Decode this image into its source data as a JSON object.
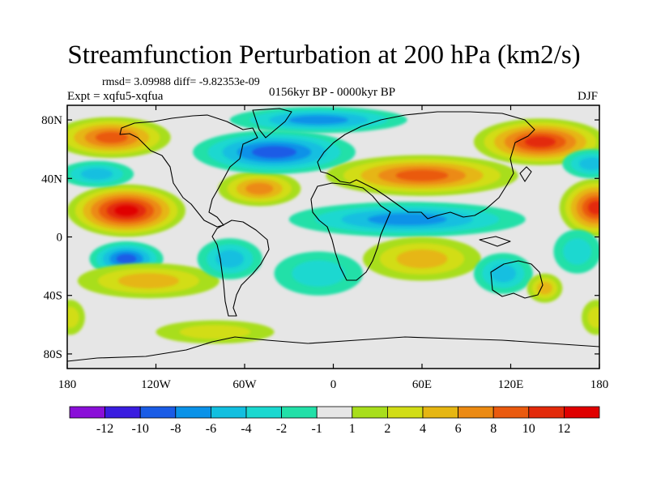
{
  "title": "Streamfunction Perturbation at 200 hPa (km2/s)",
  "stats_text": "rmsd= 3.09988  diff= -9.82353e-09",
  "experiment": "Expt = xqfu5-xqfua",
  "period": "0156kyr BP - 0000kyr BP",
  "season": "DJF",
  "map": {
    "projection": "cylindrical equidistant",
    "lon_range": [
      -180,
      180
    ],
    "lat_range": [
      -90,
      90
    ],
    "lat_ticks": [
      {
        "value": 80,
        "label": "80N"
      },
      {
        "value": 40,
        "label": "40N"
      },
      {
        "value": 0,
        "label": "0"
      },
      {
        "value": -40,
        "label": "40S"
      },
      {
        "value": -80,
        "label": "80S"
      }
    ],
    "lon_ticks": [
      {
        "value": -180,
        "label": "180"
      },
      {
        "value": -120,
        "label": "120W"
      },
      {
        "value": -60,
        "label": "60W"
      },
      {
        "value": 0,
        "label": "0"
      },
      {
        "value": 60,
        "label": "60E"
      },
      {
        "value": 120,
        "label": "120E"
      },
      {
        "value": 180,
        "label": "180"
      }
    ],
    "features": [
      {
        "name": "north-pacific-high",
        "lon": -140,
        "lat": 18,
        "rx": 40,
        "ry": 18,
        "value": 12
      },
      {
        "name": "arctic-high-west",
        "lon": -150,
        "lat": 68,
        "rx": 40,
        "ry": 14,
        "value": 8
      },
      {
        "name": "pacific-low-40n",
        "lon": -160,
        "lat": 43,
        "rx": 25,
        "ry": 9,
        "value": -4
      },
      {
        "name": "atlantic-high",
        "lon": -50,
        "lat": 33,
        "rx": 28,
        "ry": 12,
        "value": 6
      },
      {
        "name": "north-america-europe-low",
        "lon": -40,
        "lat": 58,
        "rx": 55,
        "ry": 15,
        "value": -8
      },
      {
        "name": "arctic-low",
        "lon": -10,
        "lat": 80,
        "rx": 60,
        "ry": 9,
        "value": -6
      },
      {
        "name": "eurasia-subtropical-high",
        "lon": 60,
        "lat": 42,
        "rx": 65,
        "ry": 14,
        "value": 8
      },
      {
        "name": "tropical-asia-low",
        "lon": 50,
        "lat": 12,
        "rx": 80,
        "ry": 12,
        "value": -6
      },
      {
        "name": "siberia-high",
        "lon": 140,
        "lat": 65,
        "rx": 45,
        "ry": 16,
        "value": 10
      },
      {
        "name": "east-pacific-high",
        "lon": 178,
        "lat": 20,
        "rx": 25,
        "ry": 20,
        "value": 10
      },
      {
        "name": "east-pacific-low",
        "lon": 175,
        "lat": 50,
        "rx": 20,
        "ry": 10,
        "value": -4
      },
      {
        "name": "south-pacific-low",
        "lon": -140,
        "lat": -15,
        "rx": 25,
        "ry": 12,
        "value": -8
      },
      {
        "name": "south-pacific-high",
        "lon": -125,
        "lat": -30,
        "rx": 48,
        "ry": 12,
        "value": 4
      },
      {
        "name": "south-america-low",
        "lon": -70,
        "lat": -15,
        "rx": 22,
        "ry": 14,
        "value": -4
      },
      {
        "name": "south-atlantic-low",
        "lon": -10,
        "lat": -25,
        "rx": 30,
        "ry": 15,
        "value": -2
      },
      {
        "name": "south-indian-high",
        "lon": 60,
        "lat": -15,
        "rx": 40,
        "ry": 15,
        "value": 4
      },
      {
        "name": "australia-low",
        "lon": 115,
        "lat": -25,
        "rx": 20,
        "ry": 14,
        "value": -4
      },
      {
        "name": "australia-high",
        "lon": 143,
        "lat": -35,
        "rx": 12,
        "ry": 10,
        "value": 4
      },
      {
        "name": "southwest-pacific-low",
        "lon": 165,
        "lat": -10,
        "rx": 16,
        "ry": 15,
        "value": -2
      },
      {
        "name": "southern-ocean-high",
        "lon": -80,
        "lat": -65,
        "rx": 40,
        "ry": 8,
        "value": 2
      },
      {
        "name": "far-east-pacific-south-high",
        "lon": 178,
        "lat": -55,
        "rx": 10,
        "ry": 12,
        "value": 2
      },
      {
        "name": "far-west-pacific-south-high",
        "lon": -178,
        "lat": -55,
        "rx": 10,
        "ry": 12,
        "value": 2
      }
    ]
  },
  "colorbar": {
    "levels": [
      "-12",
      "-10",
      "-8",
      "-6",
      "-4",
      "-2",
      "-1",
      "1",
      "2",
      "4",
      "6",
      "8",
      "10",
      "12"
    ],
    "colors": [
      "#8a0fd8",
      "#3a1de0",
      "#1a5ce6",
      "#0a92e8",
      "#12bfe0",
      "#1ad8d0",
      "#22e0a8",
      "#e6e6e6",
      "#a8de1c",
      "#d2dd16",
      "#e6b612",
      "#ec8a12",
      "#ea5a0e",
      "#e32a0a",
      "#e00000"
    ]
  }
}
